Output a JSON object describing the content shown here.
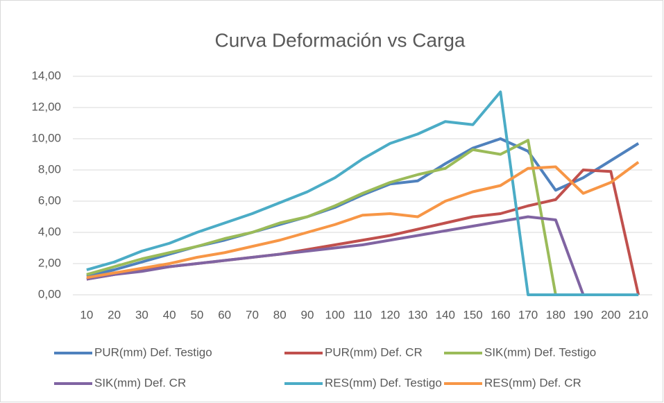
{
  "chart_data": {
    "type": "line",
    "title": "Curva Deformación vs Carga",
    "categories": [
      10,
      20,
      30,
      40,
      50,
      60,
      70,
      80,
      90,
      100,
      110,
      120,
      130,
      140,
      150,
      160,
      170,
      180,
      190,
      200,
      210
    ],
    "series": [
      {
        "name": "PUR(mm) Def. Testigo",
        "color": "#4f81bd",
        "values": [
          1.2,
          1.6,
          2.1,
          2.6,
          3.1,
          3.5,
          4.0,
          4.5,
          5.0,
          5.6,
          6.4,
          7.1,
          7.3,
          8.4,
          9.4,
          10.0,
          9.2,
          6.7,
          7.5,
          8.6,
          9.7
        ]
      },
      {
        "name": "PUR(mm) Def. CR",
        "color": "#c0504d",
        "values": [
          1.0,
          1.3,
          1.6,
          1.8,
          2.0,
          2.2,
          2.4,
          2.6,
          2.9,
          3.2,
          3.5,
          3.8,
          4.2,
          4.6,
          5.0,
          5.2,
          5.7,
          6.1,
          8.0,
          7.9,
          0.0
        ]
      },
      {
        "name": "SIK(mm) Def. Testigo",
        "color": "#9bbb59",
        "values": [
          1.3,
          1.8,
          2.3,
          2.7,
          3.1,
          3.6,
          4.0,
          4.6,
          5.0,
          5.7,
          6.5,
          7.2,
          7.7,
          8.1,
          9.3,
          9.0,
          9.9,
          0.0,
          0.0,
          0.0,
          0.0
        ]
      },
      {
        "name": "SIK(mm) Def. CR",
        "color": "#8064a2",
        "values": [
          1.0,
          1.3,
          1.5,
          1.8,
          2.0,
          2.2,
          2.4,
          2.6,
          2.8,
          3.0,
          3.2,
          3.5,
          3.8,
          4.1,
          4.4,
          4.7,
          5.0,
          4.8,
          0.0,
          0.0,
          0.0
        ]
      },
      {
        "name": "RES(mm) Def. Testigo",
        "color": "#4bacc6",
        "values": [
          1.6,
          2.1,
          2.8,
          3.3,
          4.0,
          4.6,
          5.2,
          5.9,
          6.6,
          7.5,
          8.7,
          9.7,
          10.3,
          11.1,
          10.9,
          13.0,
          0.0,
          0.0,
          0.0,
          0.0,
          0.0
        ]
      },
      {
        "name": "RES(mm) Def. CR",
        "color": "#f79646",
        "values": [
          1.1,
          1.4,
          1.7,
          2.0,
          2.4,
          2.7,
          3.1,
          3.5,
          4.0,
          4.5,
          5.1,
          5.2,
          5.0,
          6.0,
          6.6,
          7.0,
          8.1,
          8.2,
          6.5,
          7.2,
          8.5
        ]
      }
    ],
    "ylim": [
      0,
      14
    ],
    "yticks": [
      {
        "value": 0,
        "label": "0,00"
      },
      {
        "value": 2,
        "label": "2,00"
      },
      {
        "value": 4,
        "label": "4,00"
      },
      {
        "value": 6,
        "label": "6,00"
      },
      {
        "value": 8,
        "label": "8,00"
      },
      {
        "value": 10,
        "label": "10,00"
      },
      {
        "value": 12,
        "label": "12,00"
      },
      {
        "value": 14,
        "label": "14,00"
      }
    ],
    "grid": true,
    "legend": "bottom"
  }
}
